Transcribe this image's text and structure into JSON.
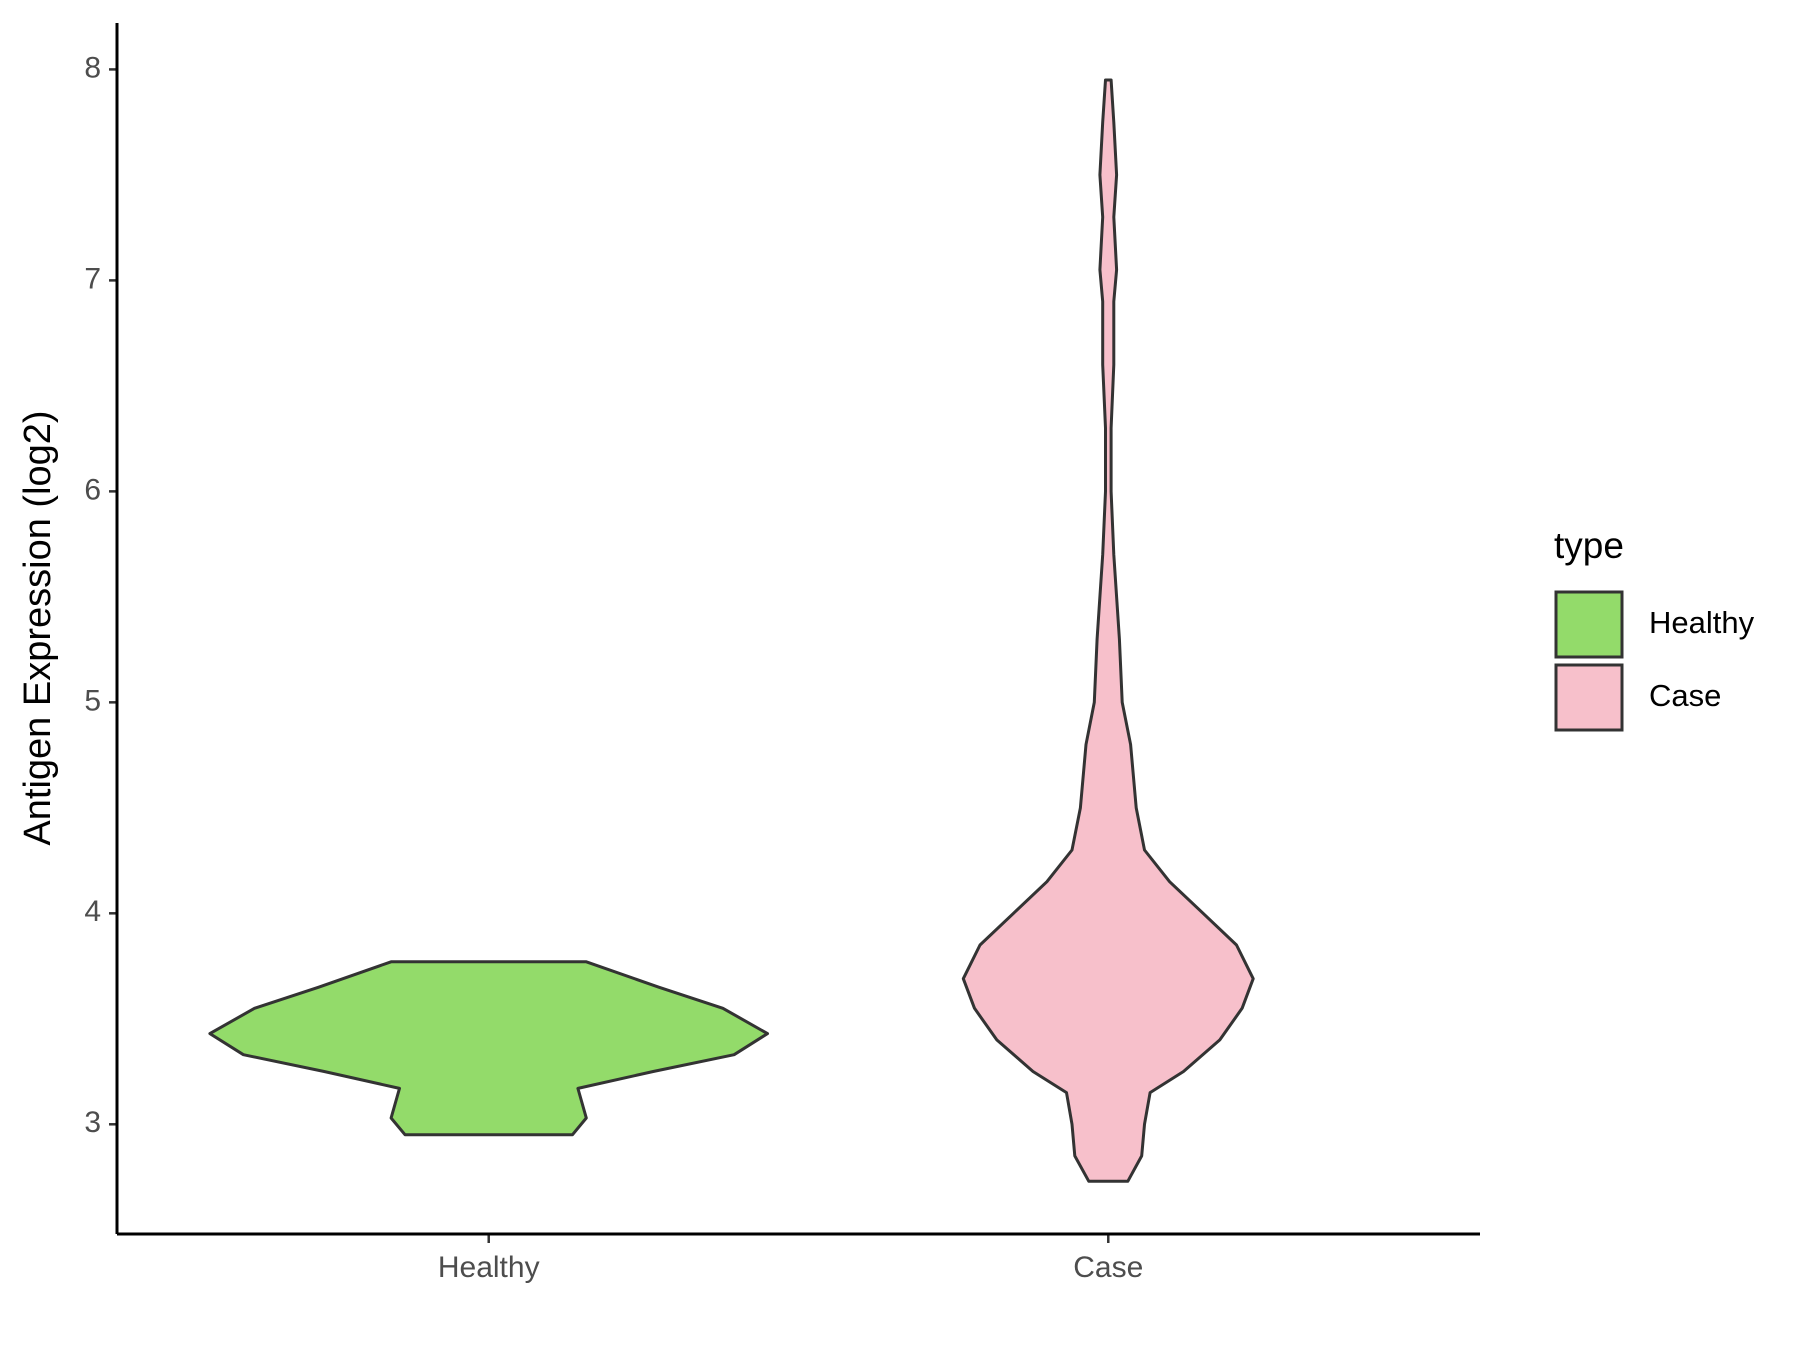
{
  "chart_data": {
    "type": "violin",
    "y_label": "Antigen Expression (log2)",
    "categories": [
      "Healthy",
      "Case"
    ],
    "ylim": [
      2.48,
      8.22
    ],
    "yticks": [
      3,
      4,
      5,
      6,
      7,
      8
    ],
    "legend_title": "type",
    "legend_position": "right",
    "series": [
      {
        "name": "Healthy",
        "color": "#93db6a",
        "y": [
          2.95,
          3.03,
          3.17,
          3.25,
          3.33,
          3.43,
          3.55,
          3.65,
          3.77
        ],
        "width": [
          0.3,
          0.35,
          0.32,
          0.59,
          0.88,
          1.0,
          0.84,
          0.61,
          0.35
        ]
      },
      {
        "name": "Case",
        "color": "#f7c0cb",
        "y": [
          2.73,
          2.85,
          3.0,
          3.15,
          3.25,
          3.4,
          3.55,
          3.69,
          3.85,
          4.0,
          4.15,
          4.3,
          4.5,
          4.8,
          5.0,
          5.3,
          5.7,
          6.0,
          6.3,
          6.6,
          6.9,
          7.05,
          7.3,
          7.5,
          7.75,
          7.95
        ],
        "width": [
          0.07,
          0.12,
          0.13,
          0.15,
          0.27,
          0.4,
          0.48,
          0.52,
          0.46,
          0.34,
          0.22,
          0.13,
          0.1,
          0.08,
          0.05,
          0.04,
          0.02,
          0.01,
          0.01,
          0.02,
          0.02,
          0.03,
          0.02,
          0.03,
          0.02,
          0.01
        ]
      }
    ]
  }
}
